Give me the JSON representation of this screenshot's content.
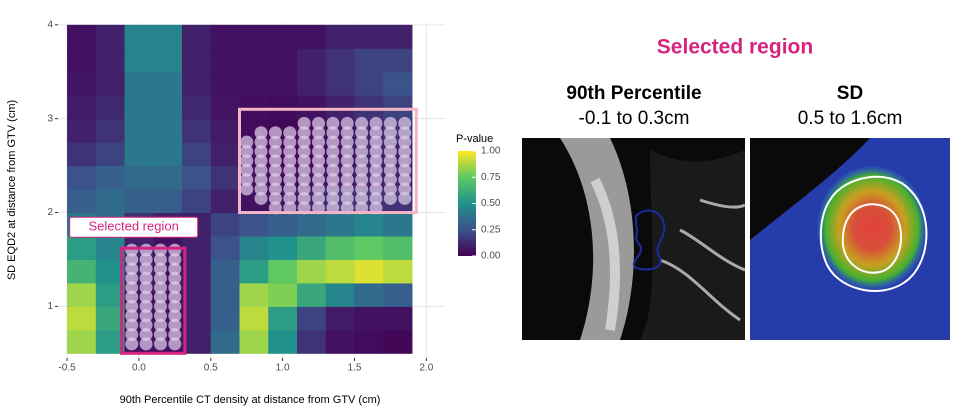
{
  "chart_data": {
    "type": "heatmap",
    "xlabel": "90th Percentile CT density at distance from GTV (cm)",
    "ylabel": "SD EQD2 at distance from GTV (cm)",
    "xlim": [
      -0.563,
      2.13
    ],
    "ylim": [
      0.45,
      4.03
    ],
    "xticks": [
      -0.5,
      {
        "value": 0,
        "label": "0.0"
      },
      0.5,
      {
        "value": 1,
        "label": "1.0"
      },
      1.5,
      {
        "value": 2,
        "label": "2.0"
      }
    ],
    "yticks": [
      1,
      2,
      3,
      4
    ],
    "grid": true,
    "xbins": [
      -0.5,
      -0.3,
      -0.1,
      0.1,
      0.3,
      0.5,
      0.7,
      0.9,
      1.1,
      1.3,
      1.5,
      1.7,
      1.9
    ],
    "ybins": [
      0.5,
      0.75,
      1.0,
      1.25,
      1.5,
      1.75,
      2.0,
      2.25,
      2.5,
      2.75,
      3.0,
      3.25,
      3.5,
      3.75,
      4.0
    ],
    "z": [
      [
        0.85,
        0.55,
        0.05,
        0.05,
        0.1,
        0.35,
        0.85,
        0.5,
        0.15,
        0.05,
        0.03,
        0.02
      ],
      [
        0.9,
        0.6,
        0.05,
        0.05,
        0.1,
        0.3,
        0.9,
        0.55,
        0.2,
        0.08,
        0.05,
        0.05
      ],
      [
        0.85,
        0.55,
        0.05,
        0.05,
        0.1,
        0.3,
        0.85,
        0.8,
        0.6,
        0.45,
        0.35,
        0.3
      ],
      [
        0.65,
        0.5,
        0.1,
        0.05,
        0.1,
        0.3,
        0.55,
        0.75,
        0.85,
        0.9,
        0.95,
        0.9
      ],
      [
        0.55,
        0.45,
        0.1,
        0.05,
        0.1,
        0.25,
        0.45,
        0.5,
        0.6,
        0.7,
        0.75,
        0.7
      ],
      [
        0.4,
        0.35,
        0.15,
        0.1,
        0.1,
        0.2,
        0.25,
        0.3,
        0.35,
        0.4,
        0.45,
        0.4
      ],
      [
        0.3,
        0.35,
        0.3,
        0.3,
        0.2,
        0.1,
        0.05,
        0.05,
        0.1,
        0.15,
        0.15,
        0.15
      ],
      [
        0.25,
        0.3,
        0.35,
        0.35,
        0.25,
        0.15,
        0.05,
        0.03,
        0.05,
        0.08,
        0.1,
        0.1
      ],
      [
        0.15,
        0.2,
        0.4,
        0.4,
        0.2,
        0.1,
        0.03,
        0.02,
        0.03,
        0.05,
        0.1,
        0.1
      ],
      [
        0.1,
        0.15,
        0.4,
        0.4,
        0.15,
        0.08,
        0.03,
        0.02,
        0.03,
        0.05,
        0.1,
        0.15
      ],
      [
        0.08,
        0.12,
        0.4,
        0.4,
        0.12,
        0.06,
        0.04,
        0.03,
        0.05,
        0.1,
        0.15,
        0.2
      ],
      [
        0.06,
        0.1,
        0.4,
        0.4,
        0.1,
        0.05,
        0.05,
        0.05,
        0.1,
        0.15,
        0.2,
        0.25
      ],
      [
        0.05,
        0.1,
        0.45,
        0.45,
        0.1,
        0.05,
        0.05,
        0.05,
        0.1,
        0.15,
        0.2,
        0.2
      ],
      [
        0.05,
        0.1,
        0.45,
        0.45,
        0.1,
        0.05,
        0.05,
        0.05,
        0.05,
        0.1,
        0.1,
        0.1
      ]
    ],
    "legend_title": "P-value",
    "colorbar_lim": [
      0,
      1
    ],
    "colorbar_ticks": [
      {
        "value": 0,
        "label": "0.00"
      },
      {
        "value": 0.25,
        "label": "0.25"
      },
      {
        "value": 0.5,
        "label": "0.50"
      },
      {
        "value": 0.75,
        "label": "0.75"
      },
      {
        "value": 1,
        "label": "1.00"
      }
    ],
    "points": [
      [
        -0.05,
        0.6
      ],
      [
        0.05,
        0.6
      ],
      [
        0.15,
        0.6
      ],
      [
        0.25,
        0.6
      ],
      [
        -0.05,
        0.7
      ],
      [
        0.05,
        0.7
      ],
      [
        0.15,
        0.7
      ],
      [
        0.25,
        0.7
      ],
      [
        -0.05,
        0.8
      ],
      [
        0.05,
        0.8
      ],
      [
        0.15,
        0.8
      ],
      [
        0.25,
        0.8
      ],
      [
        -0.05,
        0.9
      ],
      [
        0.05,
        0.9
      ],
      [
        0.15,
        0.9
      ],
      [
        0.25,
        0.9
      ],
      [
        -0.05,
        1.0
      ],
      [
        0.05,
        1.0
      ],
      [
        0.15,
        1.0
      ],
      [
        0.25,
        1.0
      ],
      [
        -0.05,
        1.1
      ],
      [
        0.05,
        1.1
      ],
      [
        0.15,
        1.1
      ],
      [
        0.25,
        1.1
      ],
      [
        -0.05,
        1.2
      ],
      [
        0.05,
        1.2
      ],
      [
        0.15,
        1.2
      ],
      [
        0.25,
        1.2
      ],
      [
        -0.05,
        1.3
      ],
      [
        0.05,
        1.3
      ],
      [
        0.15,
        1.3
      ],
      [
        0.25,
        1.3
      ],
      [
        -0.05,
        1.4
      ],
      [
        0.05,
        1.4
      ],
      [
        0.15,
        1.4
      ],
      [
        0.25,
        1.4
      ],
      [
        -0.05,
        1.5
      ],
      [
        0.05,
        1.5
      ],
      [
        0.15,
        1.5
      ],
      [
        0.25,
        1.5
      ],
      [
        -0.05,
        1.6
      ],
      [
        0.05,
        1.6
      ],
      [
        0.15,
        1.6
      ],
      [
        0.25,
        1.6
      ],
      [
        0.95,
        2.05
      ],
      [
        1.05,
        2.05
      ],
      [
        1.15,
        2.05
      ],
      [
        1.25,
        2.05
      ],
      [
        1.35,
        2.05
      ],
      [
        1.45,
        2.05
      ],
      [
        1.55,
        2.05
      ],
      [
        1.65,
        2.05
      ],
      [
        0.85,
        2.15
      ],
      [
        0.95,
        2.15
      ],
      [
        1.05,
        2.15
      ],
      [
        1.15,
        2.15
      ],
      [
        1.25,
        2.15
      ],
      [
        1.35,
        2.15
      ],
      [
        1.45,
        2.15
      ],
      [
        1.55,
        2.15
      ],
      [
        1.65,
        2.15
      ],
      [
        1.75,
        2.15
      ],
      [
        1.85,
        2.15
      ],
      [
        0.75,
        2.25
      ],
      [
        0.85,
        2.25
      ],
      [
        0.95,
        2.25
      ],
      [
        1.05,
        2.25
      ],
      [
        1.15,
        2.25
      ],
      [
        1.25,
        2.25
      ],
      [
        1.35,
        2.25
      ],
      [
        1.45,
        2.25
      ],
      [
        1.55,
        2.25
      ],
      [
        1.65,
        2.25
      ],
      [
        1.75,
        2.25
      ],
      [
        1.85,
        2.25
      ],
      [
        0.75,
        2.35
      ],
      [
        0.85,
        2.35
      ],
      [
        0.95,
        2.35
      ],
      [
        1.05,
        2.35
      ],
      [
        1.15,
        2.35
      ],
      [
        1.25,
        2.35
      ],
      [
        1.35,
        2.35
      ],
      [
        1.45,
        2.35
      ],
      [
        1.55,
        2.35
      ],
      [
        1.65,
        2.35
      ],
      [
        1.75,
        2.35
      ],
      [
        1.85,
        2.35
      ],
      [
        0.75,
        2.45
      ],
      [
        0.85,
        2.45
      ],
      [
        0.95,
        2.45
      ],
      [
        1.05,
        2.45
      ],
      [
        1.15,
        2.45
      ],
      [
        1.25,
        2.45
      ],
      [
        1.35,
        2.45
      ],
      [
        1.45,
        2.45
      ],
      [
        1.55,
        2.45
      ],
      [
        1.65,
        2.45
      ],
      [
        1.75,
        2.45
      ],
      [
        1.85,
        2.45
      ],
      [
        0.75,
        2.55
      ],
      [
        0.85,
        2.55
      ],
      [
        0.95,
        2.55
      ],
      [
        1.05,
        2.55
      ],
      [
        1.15,
        2.55
      ],
      [
        1.25,
        2.55
      ],
      [
        1.35,
        2.55
      ],
      [
        1.45,
        2.55
      ],
      [
        1.55,
        2.55
      ],
      [
        1.65,
        2.55
      ],
      [
        1.75,
        2.55
      ],
      [
        1.85,
        2.55
      ],
      [
        0.75,
        2.65
      ],
      [
        0.85,
        2.65
      ],
      [
        0.95,
        2.65
      ],
      [
        1.05,
        2.65
      ],
      [
        1.15,
        2.65
      ],
      [
        1.25,
        2.65
      ],
      [
        1.35,
        2.65
      ],
      [
        1.45,
        2.65
      ],
      [
        1.55,
        2.65
      ],
      [
        1.65,
        2.65
      ],
      [
        1.75,
        2.65
      ],
      [
        1.85,
        2.65
      ],
      [
        0.75,
        2.75
      ],
      [
        0.85,
        2.75
      ],
      [
        0.95,
        2.75
      ],
      [
        1.05,
        2.75
      ],
      [
        1.15,
        2.75
      ],
      [
        1.25,
        2.75
      ],
      [
        1.35,
        2.75
      ],
      [
        1.45,
        2.75
      ],
      [
        1.55,
        2.75
      ],
      [
        1.65,
        2.75
      ],
      [
        1.75,
        2.75
      ],
      [
        1.85,
        2.75
      ],
      [
        0.85,
        2.85
      ],
      [
        0.95,
        2.85
      ],
      [
        1.05,
        2.85
      ],
      [
        1.15,
        2.85
      ],
      [
        1.25,
        2.85
      ],
      [
        1.35,
        2.85
      ],
      [
        1.45,
        2.85
      ],
      [
        1.55,
        2.85
      ],
      [
        1.65,
        2.85
      ],
      [
        1.75,
        2.85
      ],
      [
        1.85,
        2.85
      ],
      [
        1.15,
        2.95
      ],
      [
        1.25,
        2.95
      ],
      [
        1.35,
        2.95
      ],
      [
        1.45,
        2.95
      ],
      [
        1.55,
        2.95
      ],
      [
        1.65,
        2.95
      ],
      [
        1.75,
        2.95
      ],
      [
        1.85,
        2.95
      ]
    ],
    "regions": [
      {
        "label": "Selected region",
        "x": [
          -0.12,
          0.32
        ],
        "y": [
          0.5,
          1.62
        ],
        "color": "#d6247e"
      },
      {
        "x": [
          0.7,
          1.93
        ],
        "y": [
          2.0,
          3.1
        ],
        "color": "#f5b5c8"
      }
    ]
  },
  "panel": {
    "title": "Selected region",
    "images": [
      {
        "title": "90th Percentile",
        "subtitle": "-0.1 to 0.3cm"
      },
      {
        "title": "SD",
        "subtitle": "0.5 to 1.6cm"
      }
    ]
  }
}
